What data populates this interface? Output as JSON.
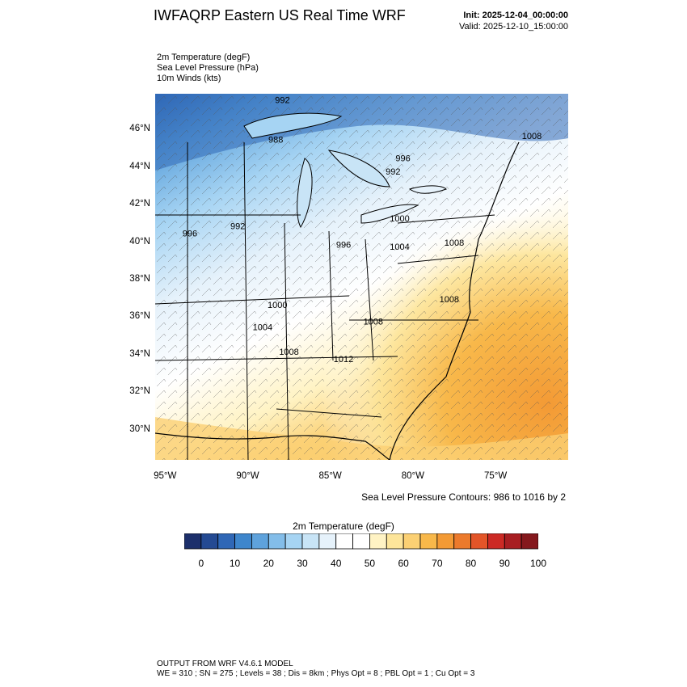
{
  "header": {
    "title": "IWFAQRP Eastern US Real Time WRF",
    "init": "Init: 2025-12-04_00:00:00",
    "valid": "Valid: 2025-12-10_15:00:00"
  },
  "fields": [
    "2m Temperature   (degF)",
    "Sea Level Pressure   (hPa)",
    "10m Winds   (kts)"
  ],
  "map": {
    "lat_ticks": [
      "46°N",
      "44°N",
      "42°N",
      "40°N",
      "38°N",
      "36°N",
      "34°N",
      "32°N",
      "30°N"
    ],
    "lat_values": [
      46,
      44,
      42,
      40,
      38,
      36,
      34,
      32,
      30
    ],
    "lon_ticks": [
      "95°W",
      "90°W",
      "85°W",
      "80°W",
      "75°W"
    ],
    "lon_values": [
      -95,
      -90,
      -85,
      -80,
      -75
    ],
    "lat_range": [
      28.4,
      47.9
    ],
    "lon_range": [
      -95.6,
      -70.6
    ],
    "pressure_labels": [
      {
        "text": "992",
        "lon": -87.9,
        "lat": 47.4
      },
      {
        "text": "988",
        "lon": -88.3,
        "lat": 45.3
      },
      {
        "text": "996",
        "lon": -80.6,
        "lat": 44.3
      },
      {
        "text": "992",
        "lon": -81.2,
        "lat": 43.6
      },
      {
        "text": "1008",
        "lon": -72.8,
        "lat": 45.5
      },
      {
        "text": "1000",
        "lon": -80.8,
        "lat": 41.1
      },
      {
        "text": "992",
        "lon": -90.6,
        "lat": 40.7
      },
      {
        "text": "996",
        "lon": -93.5,
        "lat": 40.3
      },
      {
        "text": "996",
        "lon": -84.2,
        "lat": 39.7
      },
      {
        "text": "1004",
        "lon": -80.8,
        "lat": 39.6
      },
      {
        "text": "1008",
        "lon": -77.5,
        "lat": 39.8
      },
      {
        "text": "1000",
        "lon": -88.2,
        "lat": 36.5
      },
      {
        "text": "1008",
        "lon": -77.8,
        "lat": 36.8
      },
      {
        "text": "1008",
        "lon": -82.4,
        "lat": 35.6
      },
      {
        "text": "1004",
        "lon": -89.1,
        "lat": 35.3
      },
      {
        "text": "1008",
        "lon": -87.5,
        "lat": 34.0
      },
      {
        "text": "1012",
        "lon": -84.2,
        "lat": 33.6
      }
    ]
  },
  "contour_note": "Sea Level Pressure Contours: 986 to 1016 by 2",
  "colorbar": {
    "title": "2m Temperature  (degF)",
    "colors": [
      "#1c2f6b",
      "#244a93",
      "#2f67b6",
      "#3e86cc",
      "#5ea2dc",
      "#83bde9",
      "#a6d4f3",
      "#c8e4f6",
      "#e6f2fb",
      "#ffffff",
      "#ffffff",
      "#fff3c4",
      "#fde59a",
      "#fbd073",
      "#f8b84a",
      "#f39a35",
      "#ec7a2c",
      "#e35528",
      "#cc2a25",
      "#a81e22",
      "#85181d"
    ],
    "labels": [
      "0",
      "10",
      "20",
      "30",
      "40",
      "50",
      "60",
      "70",
      "80",
      "90",
      "100"
    ]
  },
  "footer": {
    "line1": "OUTPUT FROM WRF V4.6.1 MODEL",
    "line2": "WE = 310 ; SN = 275 ; Levels = 38 ; Dis = 8km ; Phys Opt = 8 ; PBL Opt = 1 ; Cu Opt = 3"
  }
}
